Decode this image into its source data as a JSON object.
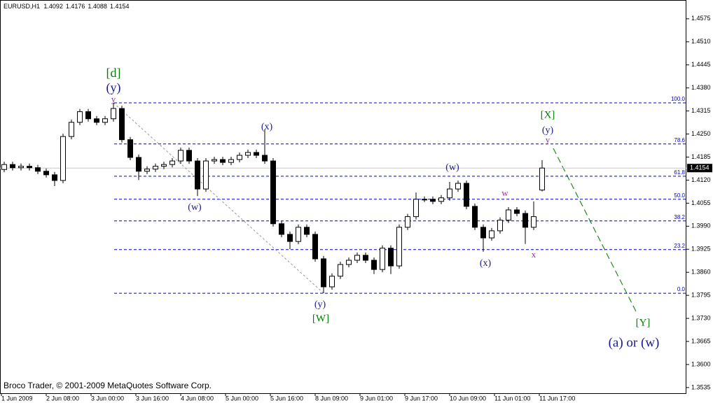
{
  "chart_data": {
    "type": "candlestick",
    "symbol": "EURUSD,H1",
    "quote": {
      "open": 1.4092,
      "high": 1.4176,
      "low": 1.4088,
      "close": 1.4154
    },
    "open": [
      1.415,
      1.4164,
      1.4155,
      1.4159,
      1.4155,
      1.4145,
      1.4135,
      1.4119,
      1.4243,
      1.4283,
      1.4313,
      1.4293,
      1.4283,
      1.4293,
      1.4322,
      1.4234,
      1.4184,
      1.4145,
      1.4151,
      1.4159,
      1.4164,
      1.4174,
      1.4204,
      1.4174,
      1.4095,
      1.4174,
      1.4178,
      1.417,
      1.4178,
      1.419,
      1.4198,
      1.419,
      1.4174,
      1.3997,
      1.3967,
      1.3947,
      1.3987,
      1.3967,
      1.3898,
      1.3819,
      1.3849,
      1.3882,
      1.3894,
      1.3908,
      1.3894,
      1.3868,
      1.3928,
      1.3878,
      1.3987,
      1.4017,
      1.4066,
      1.4066,
      1.406,
      1.407,
      1.4095,
      1.4111,
      1.4046,
      1.3987,
      1.3957,
      1.3977,
      1.4007,
      1.4036,
      1.4026,
      1.3987,
      1.4092
    ],
    "high": [
      1.4172,
      1.4172,
      1.4167,
      1.4167,
      1.4163,
      1.4153,
      1.4143,
      1.4251,
      1.4291,
      1.4321,
      1.4321,
      1.4301,
      1.4301,
      1.4338,
      1.433,
      1.4242,
      1.4192,
      1.4159,
      1.4167,
      1.4172,
      1.4182,
      1.4212,
      1.4212,
      1.4182,
      1.4182,
      1.4186,
      1.4186,
      1.4186,
      1.4198,
      1.4206,
      1.4206,
      1.4263,
      1.4182,
      1.4005,
      1.3975,
      1.3995,
      1.3995,
      1.3975,
      1.3906,
      1.3857,
      1.389,
      1.3902,
      1.3916,
      1.3916,
      1.3902,
      1.3936,
      1.3936,
      1.3995,
      1.4025,
      1.4085,
      1.4074,
      1.4074,
      1.4078,
      1.4115,
      1.4119,
      1.4119,
      1.4054,
      1.3995,
      1.3985,
      1.4015,
      1.4044,
      1.4044,
      1.4034,
      1.406,
      1.4176
    ],
    "low": [
      1.4142,
      1.4147,
      1.4147,
      1.4147,
      1.4137,
      1.4127,
      1.4103,
      1.4111,
      1.4235,
      1.4275,
      1.4285,
      1.4275,
      1.4275,
      1.4285,
      1.4226,
      1.4176,
      1.412,
      1.4137,
      1.4143,
      1.4151,
      1.4156,
      1.4166,
      1.4166,
      1.4075,
      1.4087,
      1.4166,
      1.4162,
      1.4162,
      1.417,
      1.4182,
      1.4182,
      1.4166,
      1.3989,
      1.3959,
      1.3925,
      1.3939,
      1.3959,
      1.389,
      1.3801,
      1.3811,
      1.3841,
      1.3874,
      1.3886,
      1.3886,
      1.3855,
      1.386,
      1.3855,
      1.387,
      1.3979,
      1.4009,
      1.4058,
      1.4052,
      1.4052,
      1.4062,
      1.4087,
      1.4038,
      1.3979,
      1.3918,
      1.3949,
      1.3969,
      1.3999,
      1.4018,
      1.394,
      1.3979,
      1.4088
    ],
    "close": [
      1.4164,
      1.4155,
      1.4159,
      1.4155,
      1.4145,
      1.4135,
      1.4119,
      1.4243,
      1.4283,
      1.4313,
      1.4293,
      1.4283,
      1.4293,
      1.4322,
      1.4234,
      1.4184,
      1.4145,
      1.4151,
      1.4159,
      1.4164,
      1.4174,
      1.4204,
      1.4174,
      1.4095,
      1.4174,
      1.4178,
      1.417,
      1.4178,
      1.419,
      1.4198,
      1.419,
      1.4174,
      1.3997,
      1.3967,
      1.3947,
      1.3987,
      1.3967,
      1.3898,
      1.3819,
      1.3849,
      1.3882,
      1.3894,
      1.3908,
      1.3894,
      1.3868,
      1.3928,
      1.3878,
      1.3987,
      1.4017,
      1.4066,
      1.4066,
      1.406,
      1.407,
      1.4095,
      1.4111,
      1.4046,
      1.3987,
      1.3957,
      1.3977,
      1.4007,
      1.4036,
      1.4026,
      1.3987,
      1.4017,
      1.4154
    ],
    "up_color": "#ffffff",
    "down_color": "#000000",
    "ylim": [
      1.3519,
      1.4628
    ],
    "yticks": [
      1.4575,
      {
        "value": 1.451,
        "label": "1.4510"
      },
      1.4445,
      {
        "value": 1.438,
        "label": "1.4380"
      },
      1.4315,
      {
        "value": 1.425,
        "label": "1.4250"
      },
      1.4185,
      {
        "value": 1.412,
        "label": "1.4120"
      },
      1.4055,
      {
        "value": 1.399,
        "label": "1.3990"
      },
      1.3925,
      {
        "value": 1.386,
        "label": "1.3860"
      },
      1.3795,
      {
        "value": 1.373,
        "label": "1.3730"
      },
      1.3665,
      {
        "value": 1.36,
        "label": "1.3600"
      },
      1.3535
    ],
    "x_tick_labels": [
      "1 Jun 2009",
      "2 Jun 08:00",
      "3 Jun 00:00",
      "3 Jun 16:00",
      "4 Jun 08:00",
      "5 Jun 00:00",
      "5 Jun 16:00",
      "8 Jun 09:00",
      "9 Jun 01:00",
      "9 Jun 17:00",
      "10 Jun 09:00",
      "11 Jun 01:00",
      "11 Jun 17:00"
    ],
    "fib_color": "#0000cc",
    "fib_levels": [
      {
        "label": "100.0",
        "value": 1.4338
      },
      {
        "label": "78.6",
        "value": 1.4222
      },
      {
        "label": "61.8",
        "value": 1.4131
      },
      {
        "label": "50.0",
        "value": 1.4066
      },
      {
        "label": "38.2",
        "value": 1.4005
      },
      {
        "label": "23.2",
        "value": 1.3924
      },
      {
        "label": "0.0",
        "value": 1.3801
      }
    ],
    "annotations": [
      {
        "text": "[d]",
        "color": "#008000"
      },
      {
        "text": "(y)",
        "color": "#1a1a8c"
      },
      {
        "text": "y",
        "color": "#993399"
      },
      {
        "text": "(x)",
        "color": "#1a1a8c"
      },
      {
        "text": "(w)",
        "color": "#1a1a8c"
      },
      {
        "text": "(y)",
        "color": "#1a1a8c"
      },
      {
        "text": "[W]",
        "color": "#008000"
      },
      {
        "text": "(w)",
        "color": "#1a1a8c"
      },
      {
        "text": "(x)",
        "color": "#1a1a8c"
      },
      {
        "text": "w",
        "color": "#993399"
      },
      {
        "text": "x",
        "color": "#993399"
      },
      {
        "text": "[X]",
        "color": "#008000"
      },
      {
        "text": "(y)",
        "color": "#1a1a8c"
      },
      {
        "text": "y",
        "color": "#993399"
      },
      {
        "text": "[Y]",
        "color": "#008000"
      },
      {
        "text": "(a) or (w)",
        "color": "#1a1a8c"
      }
    ],
    "footer": "Broco Trader, © 2001-2009 MetaQuotes Software Corp."
  }
}
